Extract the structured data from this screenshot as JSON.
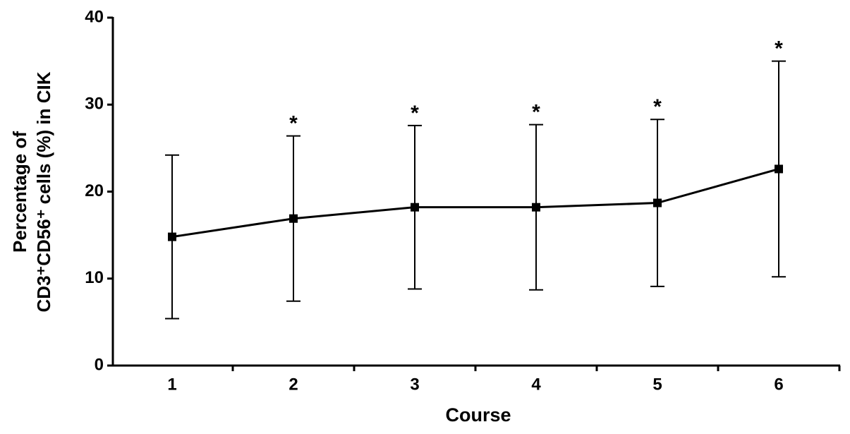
{
  "chart_data": {
    "type": "line",
    "xlabel": "Course",
    "ylabel": [
      "Percentage of",
      "CD3⁺CD56⁺ cells (%) in CIK"
    ],
    "categories": [
      "1",
      "2",
      "3",
      "4",
      "5",
      "6"
    ],
    "series": [
      {
        "color": "#000000",
        "values": [
          14.8,
          16.9,
          18.2,
          18.2,
          18.7,
          22.6
        ],
        "errors": [
          9.4,
          9.5,
          9.4,
          9.5,
          9.6,
          12.4
        ]
      }
    ],
    "annotations": [
      null,
      "*",
      "*",
      "*",
      "*",
      "*"
    ],
    "ylim": [
      0,
      40
    ],
    "yticks": [
      0,
      10,
      20,
      30,
      40
    ],
    "grid": false
  }
}
